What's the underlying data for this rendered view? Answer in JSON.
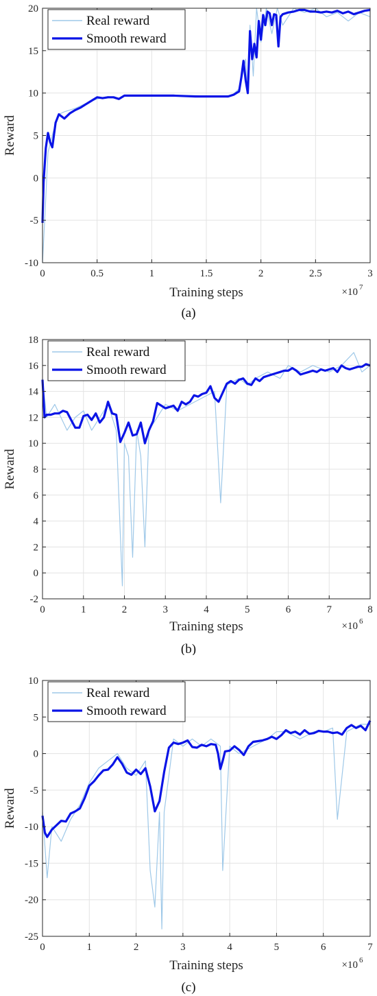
{
  "chart_data": [
    {
      "type": "line",
      "panel_label": "(a)",
      "xlabel": "Training steps",
      "ylabel": "Reward",
      "x_exponent_base": "×10",
      "x_exponent": "7",
      "xlim": [
        0,
        3
      ],
      "ylim": [
        -10,
        20
      ],
      "xticks": [
        0,
        0.5,
        1,
        1.5,
        2,
        2.5,
        3
      ],
      "xtick_labels": [
        "0",
        "0.5",
        "1",
        "1.5",
        "2",
        "2.5",
        "3"
      ],
      "yticks": [
        -10,
        -5,
        0,
        5,
        10,
        15,
        20
      ],
      "ytick_labels": [
        "-10",
        "-5",
        "0",
        "5",
        "10",
        "15",
        "20"
      ],
      "grid": true,
      "legend_position": "top-left",
      "series": [
        {
          "name": "Real reward",
          "color": "#9ec8e8",
          "role": "real",
          "x": [
            0,
            0.02,
            0.05,
            0.1,
            0.15,
            0.2,
            0.3,
            0.4,
            0.5,
            0.6,
            0.7,
            0.75,
            0.8,
            1.0,
            1.2,
            1.4,
            1.6,
            1.7,
            1.75,
            1.8,
            1.83,
            1.86,
            1.88,
            1.9,
            1.93,
            1.96,
            2.0,
            2.05,
            2.1,
            2.15,
            2.2,
            2.3,
            2.4,
            2.5,
            2.6,
            2.7,
            2.8,
            2.9,
            3.0
          ],
          "y": [
            -10,
            -5,
            3,
            5.5,
            7.5,
            7.8,
            8.2,
            8.8,
            9.3,
            9.6,
            9.4,
            9.7,
            9.7,
            9.7,
            9.7,
            9.7,
            9.6,
            9.7,
            9.9,
            10.5,
            12,
            14,
            10,
            18,
            12,
            20,
            16,
            20,
            17,
            20,
            18,
            20,
            19.5,
            20,
            19,
            19.5,
            18.5,
            19.5,
            19
          ]
        },
        {
          "name": "Smooth reward",
          "color": "#0a14e6",
          "role": "smooth",
          "x": [
            0,
            0.01,
            0.03,
            0.05,
            0.07,
            0.09,
            0.12,
            0.15,
            0.2,
            0.25,
            0.3,
            0.35,
            0.4,
            0.45,
            0.5,
            0.55,
            0.6,
            0.65,
            0.7,
            0.75,
            0.8,
            1.0,
            1.2,
            1.4,
            1.6,
            1.7,
            1.75,
            1.8,
            1.82,
            1.84,
            1.86,
            1.88,
            1.9,
            1.92,
            1.94,
            1.96,
            1.98,
            2.0,
            2.02,
            2.04,
            2.06,
            2.08,
            2.1,
            2.12,
            2.14,
            2.16,
            2.18,
            2.2,
            2.25,
            2.3,
            2.35,
            2.4,
            2.45,
            2.5,
            2.55,
            2.6,
            2.65,
            2.7,
            2.75,
            2.8,
            2.85,
            2.9,
            2.95,
            3.0
          ],
          "y": [
            -5.3,
            -0.5,
            3.5,
            5.3,
            4.2,
            3.6,
            6.5,
            7.5,
            7.0,
            7.6,
            8.0,
            8.3,
            8.7,
            9.1,
            9.5,
            9.4,
            9.5,
            9.5,
            9.3,
            9.7,
            9.7,
            9.7,
            9.7,
            9.6,
            9.6,
            9.6,
            9.8,
            10.2,
            11.8,
            13.8,
            11.5,
            10.0,
            17.3,
            14.0,
            15.8,
            14.2,
            18.5,
            16.3,
            19.2,
            18.0,
            19.6,
            19.4,
            18.0,
            19.3,
            19.2,
            15.5,
            19.0,
            19.3,
            19.5,
            19.6,
            19.8,
            19.8,
            19.6,
            19.6,
            19.5,
            19.6,
            19.5,
            19.7,
            19.4,
            19.6,
            19.3,
            19.5,
            19.7,
            19.8
          ]
        }
      ]
    },
    {
      "type": "line",
      "panel_label": "(b)",
      "xlabel": "Training steps",
      "ylabel": "Reward",
      "x_exponent_base": "×10",
      "x_exponent": "6",
      "xlim": [
        0,
        8
      ],
      "ylim": [
        -2,
        18
      ],
      "xticks": [
        0,
        1,
        2,
        3,
        4,
        5,
        6,
        7,
        8
      ],
      "xtick_labels": [
        "0",
        "1",
        "2",
        "3",
        "4",
        "5",
        "6",
        "7",
        "8"
      ],
      "yticks": [
        -2,
        0,
        2,
        4,
        6,
        8,
        10,
        12,
        14,
        16,
        18
      ],
      "ytick_labels": [
        "-2",
        "0",
        "2",
        "4",
        "6",
        "8",
        "10",
        "12",
        "14",
        "16",
        "18"
      ],
      "grid": true,
      "legend_position": "top-left",
      "series": [
        {
          "name": "Real reward",
          "color": "#9ec8e8",
          "role": "real",
          "x": [
            0,
            0.1,
            0.3,
            0.6,
            0.8,
            1.0,
            1.2,
            1.4,
            1.6,
            1.8,
            1.9,
            1.95,
            2.0,
            2.1,
            2.2,
            2.3,
            2.4,
            2.5,
            2.6,
            2.8,
            3.0,
            3.3,
            3.6,
            3.9,
            4.2,
            4.35,
            4.5,
            4.8,
            5.0,
            5.2,
            5.5,
            5.8,
            6.0,
            6.3,
            6.6,
            7.0,
            7.3,
            7.6,
            7.8,
            8.0
          ],
          "y": [
            15,
            12,
            13,
            11,
            12,
            12.5,
            11,
            12,
            13,
            11,
            3,
            -1,
            10,
            9,
            1.2,
            11,
            9,
            2,
            11,
            12,
            13,
            12.5,
            13,
            13.5,
            14,
            5.4,
            14.5,
            15,
            14.5,
            15,
            15.5,
            15,
            16,
            15.5,
            16,
            15.5,
            16,
            17,
            15.5,
            16
          ]
        },
        {
          "name": "Smooth reward",
          "color": "#0a14e6",
          "role": "smooth",
          "x": [
            0,
            0.05,
            0.1,
            0.2,
            0.3,
            0.4,
            0.5,
            0.6,
            0.7,
            0.8,
            0.9,
            1.0,
            1.1,
            1.2,
            1.3,
            1.4,
            1.5,
            1.6,
            1.7,
            1.8,
            1.9,
            2.0,
            2.1,
            2.2,
            2.3,
            2.4,
            2.5,
            2.6,
            2.7,
            2.8,
            2.9,
            3.0,
            3.1,
            3.2,
            3.3,
            3.4,
            3.5,
            3.6,
            3.7,
            3.8,
            3.9,
            4.0,
            4.1,
            4.2,
            4.3,
            4.4,
            4.5,
            4.6,
            4.7,
            4.8,
            4.9,
            5.0,
            5.1,
            5.2,
            5.3,
            5.4,
            5.5,
            5.6,
            5.7,
            5.8,
            5.9,
            6.0,
            6.1,
            6.2,
            6.3,
            6.4,
            6.5,
            6.6,
            6.7,
            6.8,
            6.9,
            7.0,
            7.1,
            7.2,
            7.3,
            7.4,
            7.5,
            7.6,
            7.7,
            7.8,
            7.9,
            8.0
          ],
          "y": [
            14.9,
            12.0,
            12.2,
            12.2,
            12.3,
            12.3,
            12.5,
            12.4,
            11.8,
            11.2,
            11.2,
            12.1,
            12.2,
            11.8,
            12.3,
            11.6,
            12.0,
            13.2,
            12.3,
            12.2,
            10.1,
            10.8,
            11.6,
            10.6,
            10.7,
            11.6,
            10.0,
            11.0,
            11.7,
            13.1,
            12.9,
            12.7,
            12.8,
            12.9,
            12.5,
            13.2,
            13.0,
            13.2,
            13.7,
            13.6,
            13.8,
            13.9,
            14.4,
            13.5,
            13.2,
            13.9,
            14.6,
            14.8,
            14.6,
            14.9,
            15.0,
            14.6,
            14.5,
            15.0,
            14.8,
            15.1,
            15.2,
            15.3,
            15.4,
            15.5,
            15.6,
            15.6,
            15.8,
            15.6,
            15.3,
            15.4,
            15.5,
            15.6,
            15.5,
            15.7,
            15.6,
            15.7,
            15.8,
            15.5,
            16.0,
            15.8,
            15.7,
            15.8,
            15.9,
            15.9,
            16.1,
            16.0
          ]
        }
      ]
    },
    {
      "type": "line",
      "panel_label": "(c)",
      "xlabel": "Training steps",
      "ylabel": "Reward",
      "x_exponent_base": "×10",
      "x_exponent": "6",
      "xlim": [
        0,
        7
      ],
      "ylim": [
        -25,
        10
      ],
      "xticks": [
        0,
        1,
        2,
        3,
        4,
        5,
        6,
        7
      ],
      "xtick_labels": [
        "0",
        "1",
        "2",
        "3",
        "4",
        "5",
        "6",
        "7"
      ],
      "yticks": [
        -25,
        -20,
        -15,
        -10,
        -5,
        0,
        5,
        10
      ],
      "ytick_labels": [
        "-25",
        "-20",
        "-15",
        "-10",
        "-5",
        "0",
        "5",
        "10"
      ],
      "grid": true,
      "legend_position": "top-left",
      "series": [
        {
          "name": "Real reward",
          "color": "#9ec8e8",
          "role": "real",
          "x": [
            0,
            0.1,
            0.2,
            0.4,
            0.6,
            0.8,
            1.0,
            1.2,
            1.4,
            1.6,
            1.8,
            2.0,
            2.2,
            2.3,
            2.4,
            2.5,
            2.55,
            2.6,
            2.7,
            2.8,
            3.0,
            3.2,
            3.4,
            3.6,
            3.8,
            3.85,
            4.0,
            4.2,
            4.5,
            4.8,
            5.0,
            5.2,
            5.5,
            5.8,
            6.0,
            6.2,
            6.3,
            6.5,
            6.8,
            7.0
          ],
          "y": [
            -8,
            -17,
            -10,
            -12,
            -9,
            -7,
            -4,
            -2,
            -1,
            0,
            -2,
            -3,
            -1,
            -16,
            -21,
            -8,
            -24,
            -8,
            -3,
            2,
            1,
            2,
            1,
            2,
            1,
            -16,
            1,
            0,
            1,
            2,
            3,
            3,
            2,
            3,
            3,
            3.5,
            -9,
            3,
            4,
            4
          ]
        },
        {
          "name": "Smooth reward",
          "color": "#0a14e6",
          "role": "smooth",
          "x": [
            0,
            0.05,
            0.1,
            0.2,
            0.3,
            0.4,
            0.5,
            0.6,
            0.7,
            0.8,
            0.9,
            1.0,
            1.1,
            1.2,
            1.3,
            1.4,
            1.5,
            1.6,
            1.7,
            1.8,
            1.9,
            2.0,
            2.1,
            2.2,
            2.3,
            2.4,
            2.5,
            2.6,
            2.7,
            2.8,
            2.9,
            3.0,
            3.1,
            3.2,
            3.3,
            3.4,
            3.5,
            3.6,
            3.7,
            3.75,
            3.8,
            3.85,
            3.9,
            4.0,
            4.1,
            4.2,
            4.3,
            4.4,
            4.5,
            4.6,
            4.7,
            4.8,
            4.9,
            5.0,
            5.1,
            5.2,
            5.3,
            5.4,
            5.5,
            5.6,
            5.7,
            5.8,
            5.9,
            6.0,
            6.1,
            6.2,
            6.3,
            6.4,
            6.5,
            6.6,
            6.7,
            6.8,
            6.9,
            7.0
          ],
          "y": [
            -8.5,
            -10.8,
            -11.4,
            -10.4,
            -9.8,
            -9.2,
            -9.3,
            -8.2,
            -7.9,
            -7.5,
            -6.1,
            -4.4,
            -3.8,
            -3.0,
            -2.3,
            -2.2,
            -1.5,
            -0.5,
            -1.4,
            -2.6,
            -2.9,
            -2.2,
            -2.8,
            -2.0,
            -4.5,
            -7.9,
            -6.5,
            -2.5,
            0.8,
            1.5,
            1.3,
            1.5,
            1.8,
            0.9,
            0.8,
            1.2,
            1.0,
            1.3,
            1.2,
            0.0,
            -2.1,
            -1.0,
            0.3,
            0.4,
            1.0,
            0.5,
            -0.2,
            1.0,
            1.6,
            1.7,
            1.8,
            2.0,
            2.3,
            2.0,
            2.5,
            3.2,
            2.8,
            3.0,
            2.6,
            3.2,
            2.7,
            2.8,
            3.1,
            3.0,
            3.0,
            2.8,
            2.9,
            2.6,
            3.5,
            3.9,
            3.5,
            3.8,
            3.2,
            4.5
          ]
        }
      ]
    }
  ]
}
